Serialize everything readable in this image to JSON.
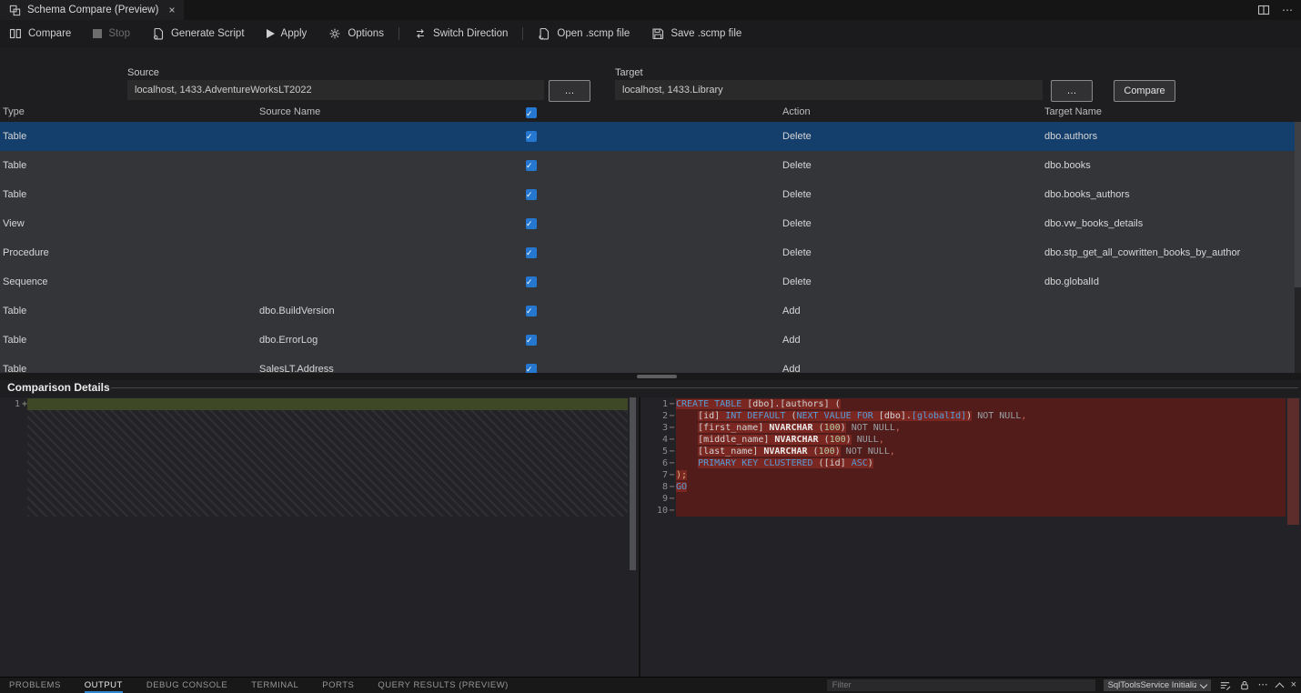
{
  "colors": {
    "accent": "#2f86d1",
    "check": "#2577cf",
    "sel": "#143e6b",
    "rml": "#521c1b",
    "rmh": "#7a2722",
    "ins": "#3e4827",
    "kw": "#569cd6"
  },
  "tab": {
    "title": "Schema Compare (Preview)",
    "close_glyph": "×"
  },
  "window": {
    "more_glyph": "⋯"
  },
  "toolbar": {
    "items": [
      {
        "label": "Compare"
      },
      {
        "label": "Stop",
        "disabled": true
      },
      {
        "label": "Generate Script"
      },
      {
        "label": "Apply"
      },
      {
        "label": "Options"
      },
      {
        "label": "Switch Direction"
      },
      {
        "label": "Open .scmp file"
      },
      {
        "label": "Save .scmp file"
      }
    ]
  },
  "source": {
    "label": "Source",
    "value": "localhost, 1433.AdventureWorksLT2022",
    "browse_label": "…"
  },
  "target": {
    "label": "Target",
    "value": "localhost, 1433.Library",
    "browse_label": "…",
    "compare_label": "Compare"
  },
  "grid": {
    "headers": {
      "type": "Type",
      "source": "Source Name",
      "action": "Action",
      "target": "Target Name"
    },
    "header_checked": true,
    "check_glyph": "✓",
    "rows": [
      {
        "type": "Table",
        "source": "",
        "checked": true,
        "action": "Delete",
        "target": "dbo.authors",
        "selected": true
      },
      {
        "type": "Table",
        "source": "",
        "checked": true,
        "action": "Delete",
        "target": "dbo.books"
      },
      {
        "type": "Table",
        "source": "",
        "checked": true,
        "action": "Delete",
        "target": "dbo.books_authors"
      },
      {
        "type": "View",
        "source": "",
        "checked": true,
        "action": "Delete",
        "target": "dbo.vw_books_details"
      },
      {
        "type": "Procedure",
        "source": "",
        "checked": true,
        "action": "Delete",
        "target": "dbo.stp_get_all_cowritten_books_by_author"
      },
      {
        "type": "Sequence",
        "source": "",
        "checked": true,
        "action": "Delete",
        "target": "dbo.globalId"
      },
      {
        "type": "Table",
        "source": "dbo.BuildVersion",
        "checked": true,
        "action": "Add",
        "target": ""
      },
      {
        "type": "Table",
        "source": "dbo.ErrorLog",
        "checked": true,
        "action": "Add",
        "target": ""
      },
      {
        "type": "Table",
        "source": "SalesLT.Address",
        "checked": true,
        "action": "Add",
        "target": ""
      }
    ]
  },
  "details": {
    "title": "Comparison Details",
    "left": {
      "line_number": "1",
      "marker": "+"
    },
    "right": {
      "lines": [
        {
          "n": "1",
          "m": "−",
          "segs": [
            [
              "CREATE TABLE ",
              "kw",
              1
            ],
            [
              "[dbo].[authors] (",
              "id",
              1
            ]
          ]
        },
        {
          "n": "2",
          "m": "−",
          "segs": [
            [
              "    ",
              "id",
              0
            ],
            [
              "[id] ",
              "id",
              1
            ],
            [
              "INT DEFAULT ",
              "kw",
              1
            ],
            [
              "(",
              "id",
              1
            ],
            [
              "NEXT VALUE FOR ",
              "kw",
              1
            ],
            [
              "[dbo].",
              "id",
              1
            ],
            [
              "[globalId]",
              "kw",
              1
            ],
            [
              ")",
              "id",
              1
            ],
            [
              " NOT NULL",
              "di",
              0
            ],
            [
              ",",
              "cm",
              0
            ]
          ]
        },
        {
          "n": "3",
          "m": "−",
          "segs": [
            [
              "    ",
              "id",
              0
            ],
            [
              "[first_name] ",
              "id",
              1
            ],
            [
              "NVARCHAR ",
              "ty",
              1
            ],
            [
              "(",
              "id",
              1
            ],
            [
              "100",
              "nu",
              1
            ],
            [
              ")",
              "id",
              1
            ],
            [
              " NOT NULL",
              "di",
              0
            ],
            [
              ",",
              "cm",
              0
            ]
          ]
        },
        {
          "n": "4",
          "m": "−",
          "segs": [
            [
              "    ",
              "id",
              0
            ],
            [
              "[middle_name] ",
              "id",
              1
            ],
            [
              "NVARCHAR ",
              "ty",
              1
            ],
            [
              "(",
              "id",
              1
            ],
            [
              "100",
              "nu",
              1
            ],
            [
              ")",
              "id",
              1
            ],
            [
              " NULL",
              "di",
              0
            ],
            [
              ",",
              "cm",
              0
            ]
          ]
        },
        {
          "n": "5",
          "m": "−",
          "segs": [
            [
              "    ",
              "id",
              0
            ],
            [
              "[last_name] ",
              "id",
              1
            ],
            [
              "NVARCHAR ",
              "ty",
              1
            ],
            [
              "(",
              "id",
              1
            ],
            [
              "100",
              "nu",
              1
            ],
            [
              ")",
              "id",
              1
            ],
            [
              " NOT NULL",
              "di",
              0
            ],
            [
              ",",
              "cm",
              0
            ]
          ]
        },
        {
          "n": "6",
          "m": "−",
          "segs": [
            [
              "    ",
              "id",
              0
            ],
            [
              "PRIMARY KEY CLUSTERED ",
              "kw",
              1
            ],
            [
              "(",
              "id",
              1
            ],
            [
              "[id] ",
              "id",
              1
            ],
            [
              "ASC",
              "kw",
              1
            ],
            [
              ")",
              "id",
              1
            ]
          ]
        },
        {
          "n": "7",
          "m": "−",
          "segs": [
            [
              ");",
              "pu",
              1
            ]
          ]
        },
        {
          "n": "8",
          "m": "−",
          "segs": [
            [
              "GO",
              "kw",
              1
            ]
          ]
        },
        {
          "n": "9",
          "m": "−",
          "segs": []
        },
        {
          "n": "10",
          "m": "−",
          "segs": []
        }
      ]
    }
  },
  "panel": {
    "tabs": [
      {
        "label": "PROBLEMS"
      },
      {
        "label": "OUTPUT",
        "active": true
      },
      {
        "label": "DEBUG CONSOLE"
      },
      {
        "label": "TERMINAL"
      },
      {
        "label": "PORTS"
      },
      {
        "label": "QUERY RESULTS (PREVIEW)"
      }
    ],
    "filter_placeholder": "Filter",
    "channel": "SqlToolsService Initializ",
    "more_glyph": "⋯",
    "close_glyph": "×"
  },
  "icons": {
    "schema-compare-icon": "two-overlapping-squares",
    "compare-icon": "two-columns",
    "stop-icon": "gray-square",
    "generate-script-icon": "document",
    "apply-icon": "play-triangle",
    "options-icon": "gear",
    "switch-direction-icon": "left-right-arrows",
    "open-file-icon": "document",
    "save-file-icon": "floppy-disk",
    "split-editor-icon": "split-rectangle",
    "more-icon": "⋯",
    "close-icon": "×",
    "checkbox-check-icon": "✓",
    "clear-output-icon": "lines-with-slash",
    "lock-icon": "padlock",
    "chevron-down-icon": "v",
    "chevron-up-icon": "^"
  }
}
